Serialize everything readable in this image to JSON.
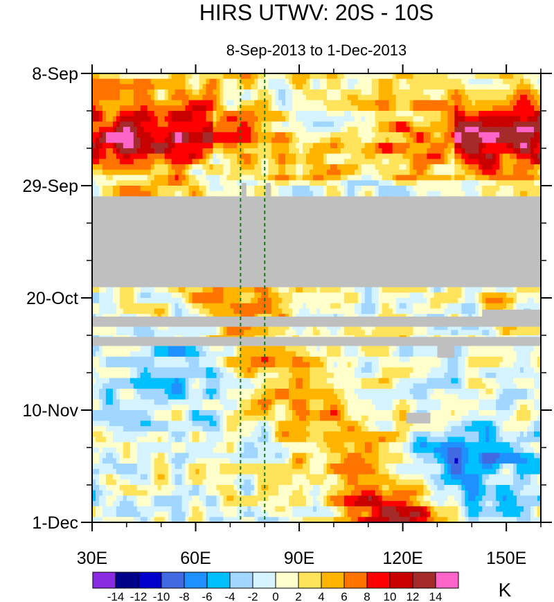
{
  "chart_data": {
    "type": "heatmap",
    "title": "HIRS UTWV: 20S - 10S",
    "subtitle": "8-Sep-2013 to 1-Dec-2013",
    "x_tick_labels": [
      "30E",
      "60E",
      "90E",
      "120E",
      "150E"
    ],
    "x_ticks": [
      30,
      60,
      90,
      120,
      150
    ],
    "x_range": [
      30,
      160
    ],
    "y_tick_labels": [
      "8-Sep",
      "29-Sep",
      "20-Oct",
      "10-Nov",
      "1-Dec"
    ],
    "y_ticks": [
      0,
      21,
      42,
      63,
      84
    ],
    "y_range": [
      0,
      84
    ],
    "colorbar_labels": [
      "-14",
      "-12",
      "-10",
      "-8",
      "-6",
      "-4",
      "-2",
      "0",
      "2",
      "4",
      "6",
      "8",
      "10",
      "12",
      "14"
    ],
    "colorbar_colors": [
      "#8a2be2",
      "#00008b",
      "#0000cd",
      "#4169e1",
      "#1e90ff",
      "#00bfff",
      "#a0d6ff",
      "#d6f4ff",
      "#ffffcc",
      "#ffe35a",
      "#ffb400",
      "#ff7300",
      "#ff0000",
      "#c80000",
      "#a52a2a",
      "#ff64c8"
    ],
    "units": "K",
    "reference_lines": [
      73,
      80
    ],
    "missing_color": "#bfbfbf"
  }
}
